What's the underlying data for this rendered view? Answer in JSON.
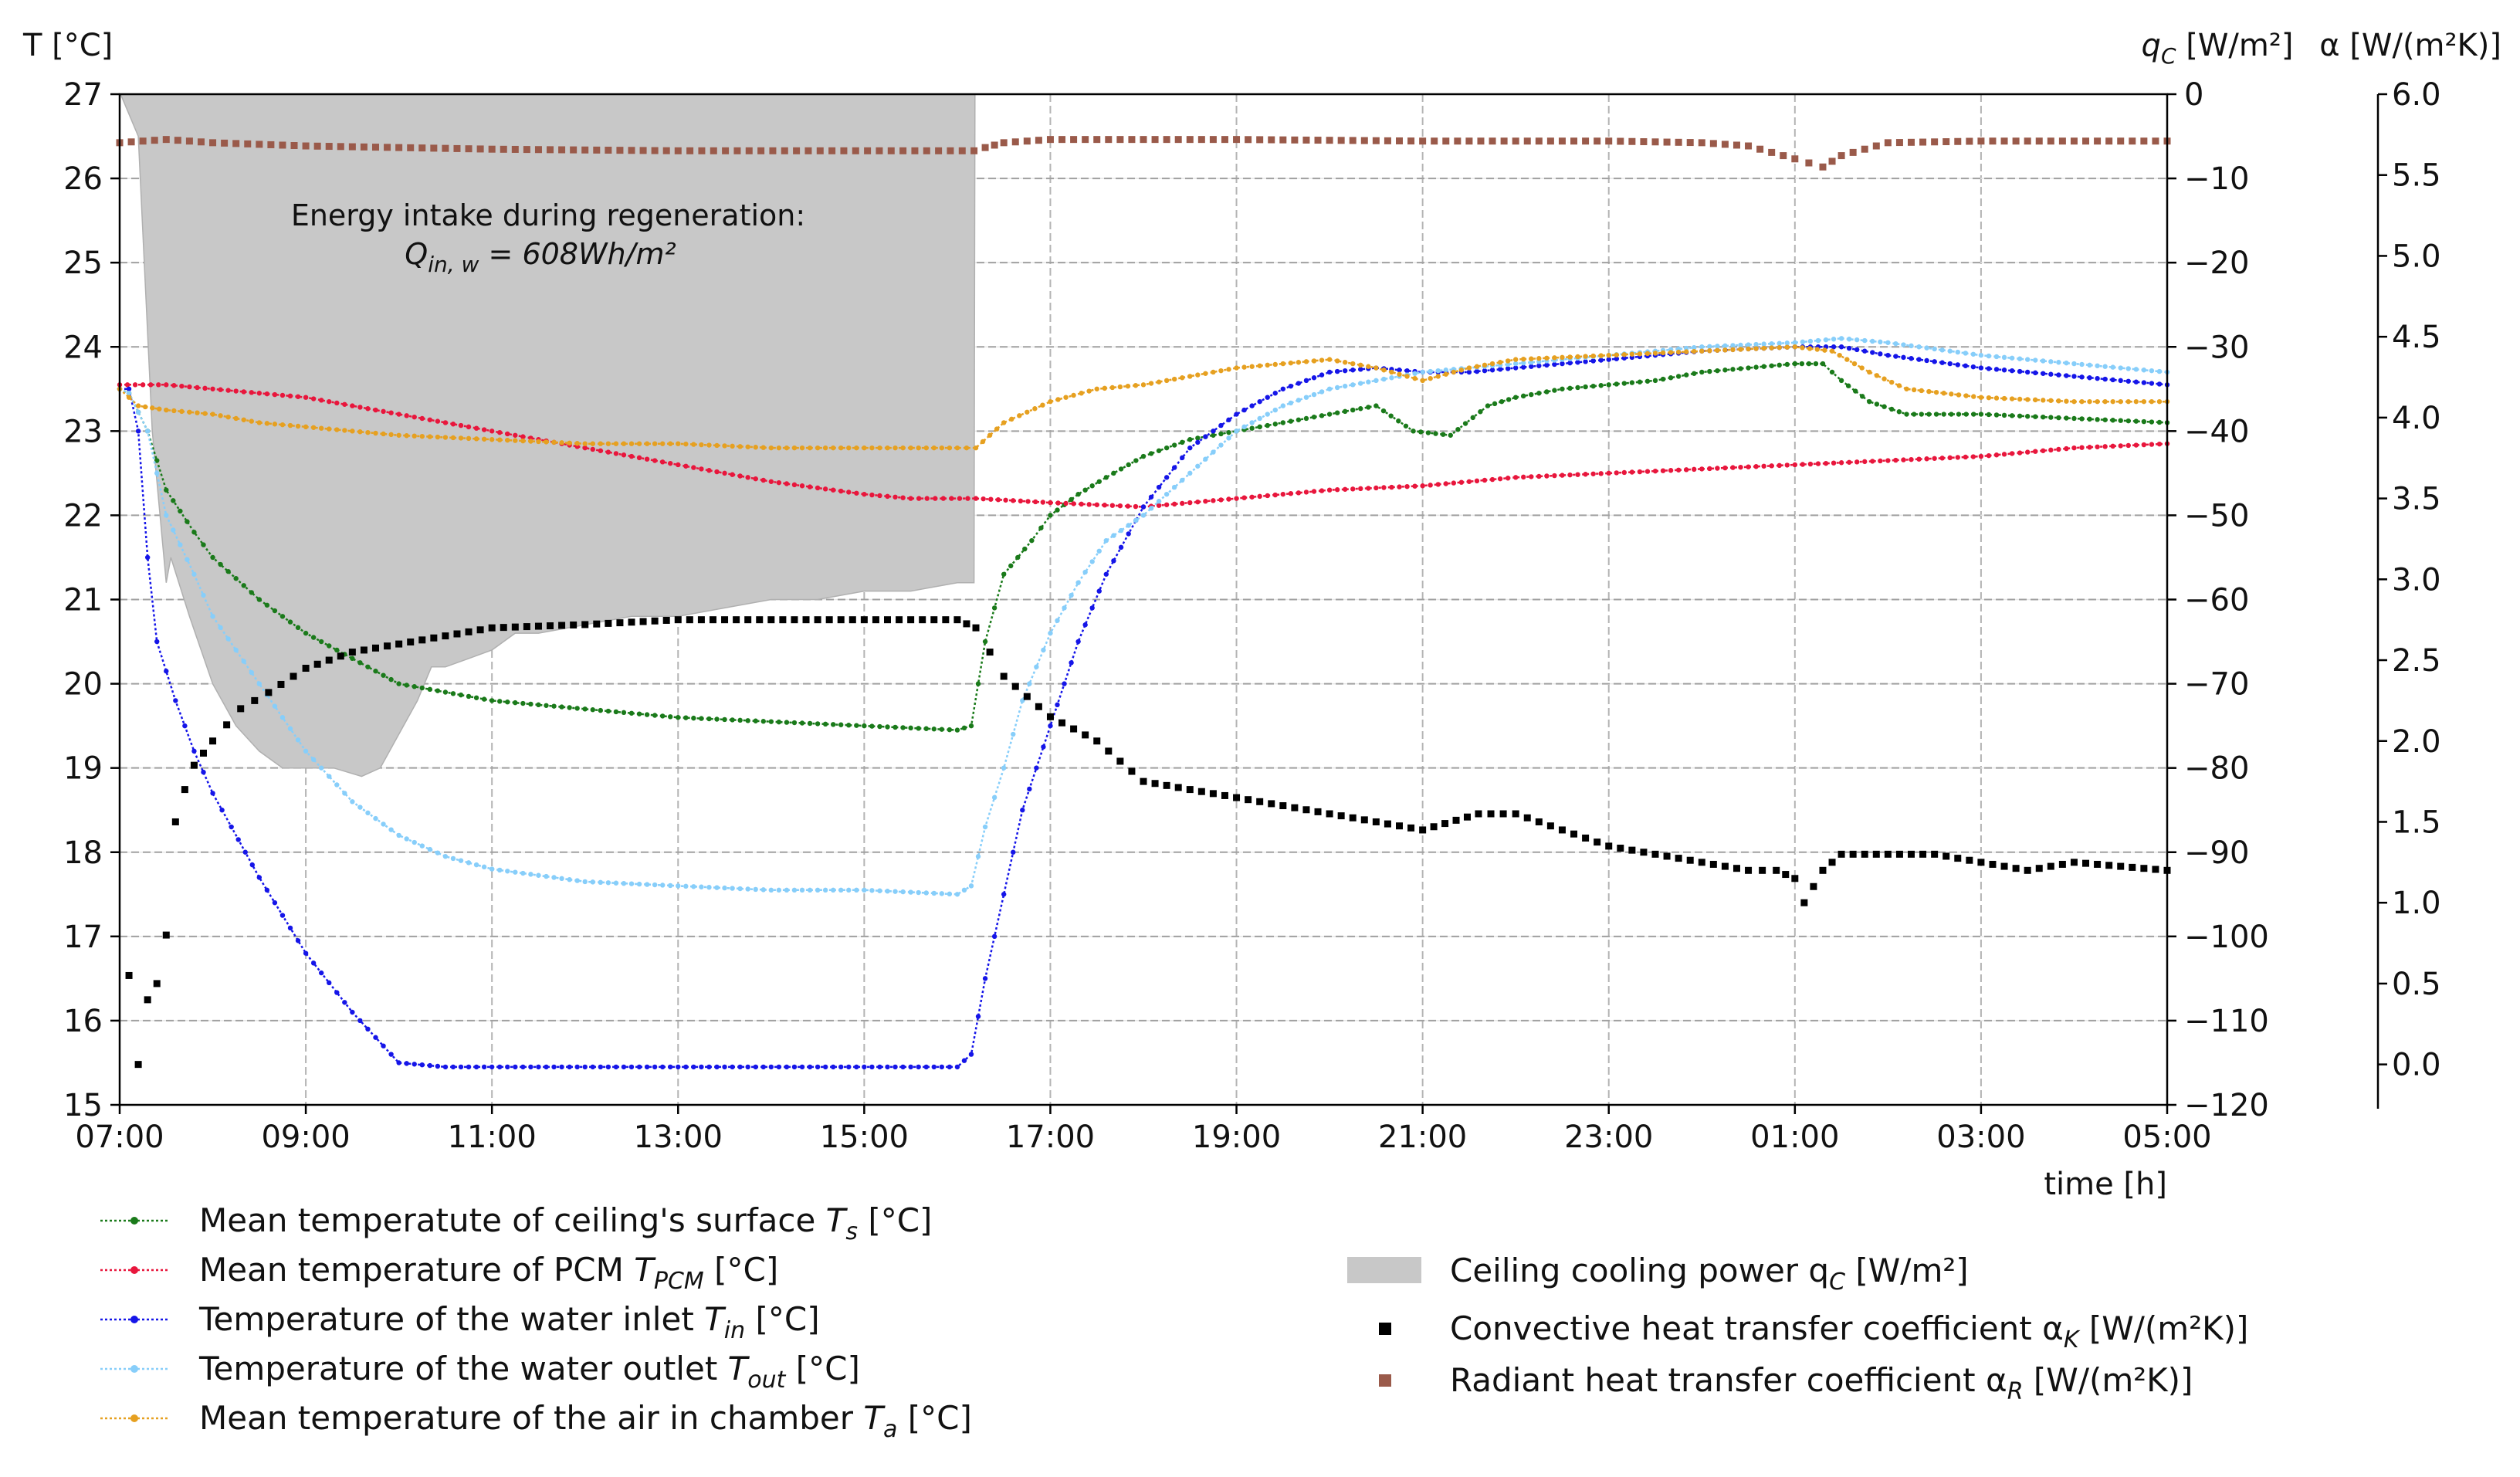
{
  "chart_data": {
    "type": "line",
    "title": "",
    "xlabel": "time [h]",
    "x_unit": "hours since 07:00",
    "xlim": [
      0,
      22
    ],
    "x_ticks": [
      {
        "x": 0,
        "label": "07:00"
      },
      {
        "x": 2,
        "label": "09:00"
      },
      {
        "x": 4,
        "label": "11:00"
      },
      {
        "x": 6,
        "label": "13:00"
      },
      {
        "x": 8,
        "label": "15:00"
      },
      {
        "x": 10,
        "label": "17:00"
      },
      {
        "x": 12,
        "label": "19:00"
      },
      {
        "x": 14,
        "label": "21:00"
      },
      {
        "x": 16,
        "label": "23:00"
      },
      {
        "x": 18,
        "label": "01:00"
      },
      {
        "x": 20,
        "label": "03:00"
      },
      {
        "x": 22,
        "label": "05:00"
      }
    ],
    "axes": {
      "left": {
        "label": "T [°C]",
        "ylim": [
          15,
          27
        ],
        "ticks": [
          "15",
          "16",
          "17",
          "18",
          "19",
          "20",
          "21",
          "22",
          "23",
          "24",
          "25",
          "26",
          "27"
        ]
      },
      "right1": {
        "label": "qC [W/m²]",
        "label_main": "q",
        "label_sub": "C",
        "label_unit": " [W/m²]",
        "ylim": [
          -120,
          0
        ],
        "ticks": [
          "0",
          "−10",
          "−20",
          "−30",
          "−40",
          "−50",
          "−60",
          "−70",
          "−80",
          "−90",
          "−100",
          "−110",
          "−120"
        ]
      },
      "right2": {
        "label": "α [W/(m²K)]",
        "ylim": [
          -0.25,
          6.0
        ],
        "ticks": [
          "0.0",
          "0.5",
          "1.0",
          "1.5",
          "2.0",
          "2.5",
          "3.0",
          "3.5",
          "4.0",
          "4.5",
          "5.0",
          "5.5",
          "6.0"
        ]
      }
    },
    "grid": true,
    "annotation": {
      "line1": "Energy intake during regeneration:",
      "line2_prefix": "Q",
      "line2_sub": "in, w",
      "line2_value": " = 608Wh/m²"
    },
    "area": {
      "name": "Ceiling cooling power qC [W/m²]",
      "axis": "right1",
      "x": [
        0.0,
        0.01,
        0.2,
        0.35,
        0.5,
        0.55,
        0.75,
        1.0,
        1.25,
        1.5,
        1.75,
        2.0,
        2.3,
        2.6,
        2.8,
        3.0,
        3.2,
        3.35,
        3.5,
        3.75,
        4.0,
        4.25,
        4.5,
        5.0,
        5.5,
        6.0,
        6.5,
        7.0,
        7.5,
        8.0,
        8.5,
        9.0,
        9.18,
        9.19
      ],
      "values": [
        0,
        0,
        -5,
        -40,
        -58,
        -55,
        -62,
        -70,
        -75,
        -78,
        -80,
        -80,
        -80,
        -81,
        -80,
        -76,
        -72,
        -68,
        -68,
        -67,
        -66,
        -64,
        -64,
        -63,
        -62,
        -62,
        -61,
        -60,
        -60,
        -59,
        -59,
        -58,
        -58,
        0
      ],
      "color": "#c8c8c8"
    },
    "series": [
      {
        "name": "Mean temperatute of ceiling's surface Ts [°C]",
        "axis": "left",
        "color": "#1a7a1a",
        "x": [
          0,
          0.1,
          0.3,
          0.5,
          0.8,
          1.0,
          1.5,
          2.0,
          2.5,
          3.0,
          3.5,
          4.0,
          4.5,
          5.0,
          6.0,
          7.0,
          8.0,
          9.0,
          9.15,
          9.3,
          9.5,
          9.8,
          10.0,
          10.3,
          10.6,
          11.0,
          11.5,
          12.0,
          12.5,
          13.0,
          13.5,
          13.9,
          14.3,
          14.7,
          15.0,
          15.5,
          16.0,
          16.5,
          17.0,
          17.5,
          18.0,
          18.3,
          18.5,
          18.8,
          19.2,
          20.0,
          21.0,
          22.0
        ],
        "values": [
          23.5,
          23.45,
          23.0,
          22.3,
          21.8,
          21.5,
          21.0,
          20.6,
          20.3,
          20.0,
          19.9,
          19.8,
          19.75,
          19.7,
          19.6,
          19.55,
          19.5,
          19.45,
          19.5,
          20.5,
          21.3,
          21.7,
          22.0,
          22.25,
          22.45,
          22.7,
          22.9,
          23.0,
          23.1,
          23.2,
          23.3,
          23.0,
          22.95,
          23.3,
          23.4,
          23.5,
          23.55,
          23.6,
          23.7,
          23.75,
          23.8,
          23.8,
          23.6,
          23.35,
          23.2,
          23.2,
          23.15,
          23.1
        ]
      },
      {
        "name": "Mean temperature of PCM TPCM [°C]",
        "axis": "left",
        "color": "#e8163c",
        "x": [
          0,
          0.5,
          1.0,
          2.0,
          3.0,
          4.0,
          5.0,
          6.0,
          7.0,
          8.0,
          8.5,
          9.2,
          10.0,
          11.0,
          12.0,
          13.0,
          14.0,
          15.0,
          16.0,
          17.0,
          18.0,
          19.0,
          20.0,
          21.0,
          22.0
        ],
        "values": [
          23.55,
          23.55,
          23.5,
          23.4,
          23.2,
          23.0,
          22.8,
          22.6,
          22.4,
          22.25,
          22.2,
          22.2,
          22.15,
          22.1,
          22.2,
          22.3,
          22.35,
          22.45,
          22.5,
          22.55,
          22.6,
          22.65,
          22.7,
          22.8,
          22.85
        ]
      },
      {
        "name": "Temperature of the water inlet Tin [°C]",
        "axis": "left",
        "color": "#1515e8",
        "x": [
          0,
          0.1,
          0.2,
          0.3,
          0.4,
          0.6,
          0.8,
          1.0,
          1.2,
          1.5,
          2.0,
          2.5,
          3.0,
          3.5,
          4.0,
          5.0,
          6.0,
          7.0,
          8.0,
          9.0,
          9.15,
          9.3,
          9.5,
          9.7,
          10.0,
          10.3,
          10.6,
          11.0,
          11.5,
          12.0,
          12.5,
          13.0,
          13.5,
          14.0,
          14.5,
          15.0,
          16.0,
          17.0,
          18.0,
          18.5,
          19.0,
          20.0,
          21.0,
          22.0
        ],
        "values": [
          23.5,
          23.5,
          23.0,
          21.5,
          20.5,
          19.8,
          19.2,
          18.7,
          18.3,
          17.7,
          16.8,
          16.1,
          15.5,
          15.45,
          15.45,
          15.45,
          15.45,
          15.45,
          15.45,
          15.45,
          15.6,
          16.5,
          17.5,
          18.5,
          19.5,
          20.5,
          21.3,
          22.1,
          22.8,
          23.2,
          23.5,
          23.7,
          23.75,
          23.7,
          23.7,
          23.75,
          23.85,
          23.95,
          24.0,
          24.0,
          23.9,
          23.75,
          23.65,
          23.55
        ]
      },
      {
        "name": "Temperature of the water outlet Tout [°C]",
        "axis": "left",
        "color": "#87cefa",
        "x": [
          0,
          0.1,
          0.3,
          0.5,
          0.8,
          1.0,
          1.5,
          2.0,
          2.5,
          3.0,
          3.5,
          4.0,
          5.0,
          6.0,
          7.0,
          8.0,
          9.0,
          9.15,
          9.3,
          9.5,
          9.7,
          10.0,
          10.3,
          10.6,
          11.0,
          11.5,
          12.0,
          12.5,
          13.0,
          13.5,
          14.0,
          15.0,
          16.0,
          17.0,
          18.0,
          18.5,
          19.0,
          20.0,
          21.0,
          22.0
        ],
        "values": [
          23.5,
          23.45,
          23.0,
          22.0,
          21.3,
          20.8,
          20.0,
          19.2,
          18.6,
          18.2,
          17.95,
          17.8,
          17.65,
          17.6,
          17.55,
          17.55,
          17.5,
          17.6,
          18.3,
          19.0,
          19.8,
          20.6,
          21.2,
          21.7,
          22.0,
          22.5,
          23.0,
          23.3,
          23.5,
          23.6,
          23.7,
          23.8,
          23.9,
          24.0,
          24.05,
          24.1,
          24.05,
          23.9,
          23.8,
          23.7
        ]
      },
      {
        "name": "Mean temperature of the air in chamber Ta [°C]",
        "axis": "left",
        "color": "#e6a020",
        "x": [
          0,
          0.2,
          0.5,
          1.0,
          1.5,
          2.0,
          3.0,
          4.0,
          5.0,
          6.0,
          7.0,
          8.0,
          9.0,
          9.2,
          9.5,
          10.0,
          10.5,
          11.0,
          12.0,
          13.0,
          13.5,
          14.0,
          14.5,
          15.0,
          16.0,
          17.0,
          18.0,
          18.4,
          18.8,
          19.2,
          20.0,
          21.0,
          22.0
        ],
        "values": [
          23.5,
          23.3,
          23.25,
          23.2,
          23.1,
          23.05,
          22.95,
          22.9,
          22.85,
          22.85,
          22.8,
          22.8,
          22.8,
          22.8,
          23.1,
          23.35,
          23.5,
          23.55,
          23.75,
          23.85,
          23.75,
          23.6,
          23.75,
          23.85,
          23.9,
          23.95,
          24.0,
          23.95,
          23.7,
          23.5,
          23.4,
          23.35,
          23.35
        ]
      },
      {
        "name": "Convective heat transfer coefficient αK [W/(m²K)]",
        "axis": "right2",
        "color": "#000000",
        "x": [
          0.1,
          0.2,
          0.3,
          0.4,
          0.5,
          0.6,
          0.7,
          0.8,
          1.0,
          1.3,
          1.6,
          2.0,
          2.5,
          3.0,
          3.5,
          4.0,
          5.0,
          6.0,
          7.0,
          8.0,
          9.0,
          9.2,
          9.5,
          10.0,
          10.5,
          11.0,
          12.0,
          12.5,
          13.0,
          13.5,
          14.0,
          14.6,
          15.0,
          15.5,
          16.0,
          16.5,
          17.0,
          17.5,
          17.8,
          18.0,
          18.1,
          18.3,
          18.5,
          19.0,
          19.5,
          20.0,
          20.5,
          21.0,
          22.0
        ],
        "values": [
          0.55,
          0.0,
          0.4,
          0.5,
          0.8,
          1.5,
          1.7,
          1.85,
          2.0,
          2.2,
          2.3,
          2.45,
          2.55,
          2.6,
          2.65,
          2.7,
          2.72,
          2.75,
          2.75,
          2.75,
          2.75,
          2.7,
          2.4,
          2.15,
          2.0,
          1.75,
          1.65,
          1.6,
          1.55,
          1.5,
          1.45,
          1.55,
          1.55,
          1.45,
          1.35,
          1.3,
          1.25,
          1.2,
          1.2,
          1.15,
          1.0,
          1.2,
          1.3,
          1.3,
          1.3,
          1.25,
          1.2,
          1.25,
          1.2
        ]
      },
      {
        "name": "Radiant heat transfer coefficient αR [W/(m²K)]",
        "axis": "right2",
        "color": "#9a5a4a",
        "x": [
          0,
          0.5,
          1.0,
          2.0,
          4.0,
          6.0,
          9.18,
          9.3,
          9.5,
          10.0,
          12.0,
          14.0,
          16.0,
          17.0,
          17.5,
          18.0,
          18.3,
          18.5,
          19.0,
          20.0,
          22.0
        ],
        "values": [
          5.7,
          5.72,
          5.7,
          5.68,
          5.66,
          5.65,
          5.65,
          5.67,
          5.7,
          5.72,
          5.72,
          5.71,
          5.71,
          5.7,
          5.68,
          5.6,
          5.55,
          5.62,
          5.7,
          5.71,
          5.71
        ]
      }
    ],
    "legend_left": [
      {
        "series": 0,
        "text": "Mean temperatute of ceiling's surface ",
        "sym": "T",
        "sub": "s",
        "unit": " [°C]"
      },
      {
        "series": 1,
        "text": "Mean temperature of PCM ",
        "sym": "T",
        "sub": "PCM",
        "unit": " [°C]"
      },
      {
        "series": 2,
        "text": "Temperature of the water inlet ",
        "sym": "T",
        "sub": "in",
        "unit": " [°C]"
      },
      {
        "series": 3,
        "text": "Temperature of the water outlet ",
        "sym": "T",
        "sub": "out",
        "unit": " [°C]"
      },
      {
        "series": 4,
        "text": "Mean temperature of the air in chamber ",
        "sym": "T",
        "sub": "a",
        "unit": " [°C]"
      }
    ],
    "legend_right": [
      {
        "kind": "area",
        "text": "Ceiling cooling power q",
        "sub": "C",
        "unit": " [W/m²]"
      },
      {
        "kind": "square",
        "series": 5,
        "text": "Convective heat transfer coefficient α",
        "sub": "K",
        "unit": " [W/(m²K)]"
      },
      {
        "kind": "square",
        "series": 6,
        "text": "Radiant heat transfer coefficient α",
        "sub": "R",
        "unit": " [W/(m²K)]"
      }
    ]
  }
}
